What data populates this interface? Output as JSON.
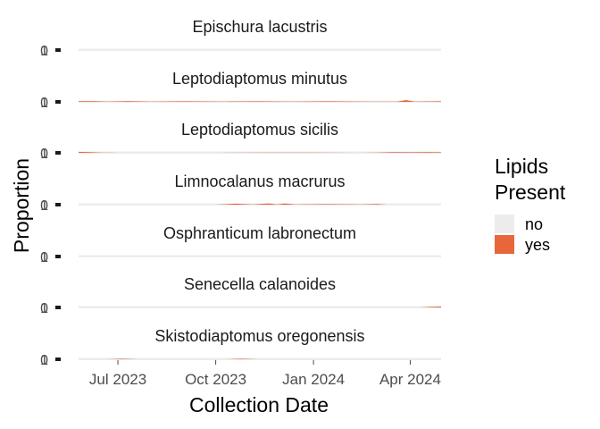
{
  "chart_data": {
    "type": "area",
    "xlabel": "Collection Date",
    "ylabel": "Proportion",
    "x_ticks": [
      "Jul 2023",
      "Oct 2023",
      "Jan 2024",
      "Apr 2024"
    ],
    "x_tick_dates": [
      "2023-07-01",
      "2023-10-01",
      "2024-01-01",
      "2024-04-01"
    ],
    "xlim": [
      "2023-05-25",
      "2024-04-30"
    ],
    "y_tick_labels": [
      "0",
      "1"
    ],
    "ylim": [
      0,
      1
    ],
    "legend": {
      "title_lines": [
        "Lipids",
        "Present"
      ],
      "entries": [
        {
          "label": "no",
          "color": "#ececec"
        },
        {
          "label": "yes",
          "color": "#e8673a"
        }
      ],
      "position": "right"
    },
    "grid": true,
    "facets": [
      {
        "name": "Epischura lacustris",
        "x": [
          "2023-05-25",
          "2024-04-30"
        ],
        "yes": [
          0,
          0
        ]
      },
      {
        "name": "Leptodiaptomus minutus",
        "x": [
          "2023-05-25",
          "2023-06-08",
          "2023-06-22",
          "2023-07-10",
          "2023-08-01",
          "2023-09-01",
          "2023-10-10",
          "2023-11-10",
          "2023-12-10",
          "2024-01-15",
          "2024-02-20",
          "2024-03-20",
          "2024-03-28",
          "2024-04-05",
          "2024-04-30"
        ],
        "yes": [
          0.03,
          0.03,
          0.01,
          0.03,
          0.01,
          0.02,
          0.01,
          0.02,
          0.01,
          0.02,
          0.01,
          0.01,
          0.07,
          0.01,
          0.02
        ]
      },
      {
        "name": "Leptodiaptomus sicilis",
        "x": [
          "2023-05-25",
          "2023-06-05",
          "2023-06-15",
          "2023-07-01",
          "2023-10-01",
          "2023-11-15",
          "2024-01-01",
          "2024-02-10",
          "2024-03-01",
          "2024-03-15",
          "2024-04-01",
          "2024-04-15",
          "2024-04-30"
        ],
        "yes": [
          0.04,
          0.03,
          0.01,
          0.0,
          0.0,
          0.01,
          0.01,
          0.0,
          0.01,
          0.03,
          0.02,
          0.03,
          0.02
        ]
      },
      {
        "name": "Limnocalanus macrurus",
        "x": [
          "2023-05-25",
          "2023-10-01",
          "2023-10-20",
          "2023-11-05",
          "2023-11-20",
          "2023-11-28",
          "2023-12-05",
          "2023-12-15",
          "2024-01-10",
          "2024-02-15",
          "2024-03-01",
          "2024-03-10",
          "2024-04-30"
        ],
        "yes": [
          0,
          0,
          0.04,
          0.01,
          0.05,
          0.01,
          0.05,
          0.01,
          0.02,
          0.01,
          0.03,
          0.0,
          0.0
        ]
      },
      {
        "name": "Osphranticum labronectum",
        "x": [
          "2023-05-25",
          "2024-04-30"
        ],
        "yes": [
          0,
          0
        ]
      },
      {
        "name": "Senecella calanoides",
        "x": [
          "2023-05-25",
          "2024-04-10",
          "2024-04-20",
          "2024-04-30"
        ],
        "yes": [
          0,
          0,
          0.02,
          0.04
        ]
      },
      {
        "name": "Skistodiaptomus oregonensis",
        "x": [
          "2023-05-25",
          "2023-06-20",
          "2023-07-05",
          "2023-07-20",
          "2023-10-10",
          "2023-10-25",
          "2023-11-10",
          "2024-04-30"
        ],
        "yes": [
          0,
          0,
          0.02,
          0,
          0,
          0.02,
          0,
          0
        ]
      }
    ]
  }
}
